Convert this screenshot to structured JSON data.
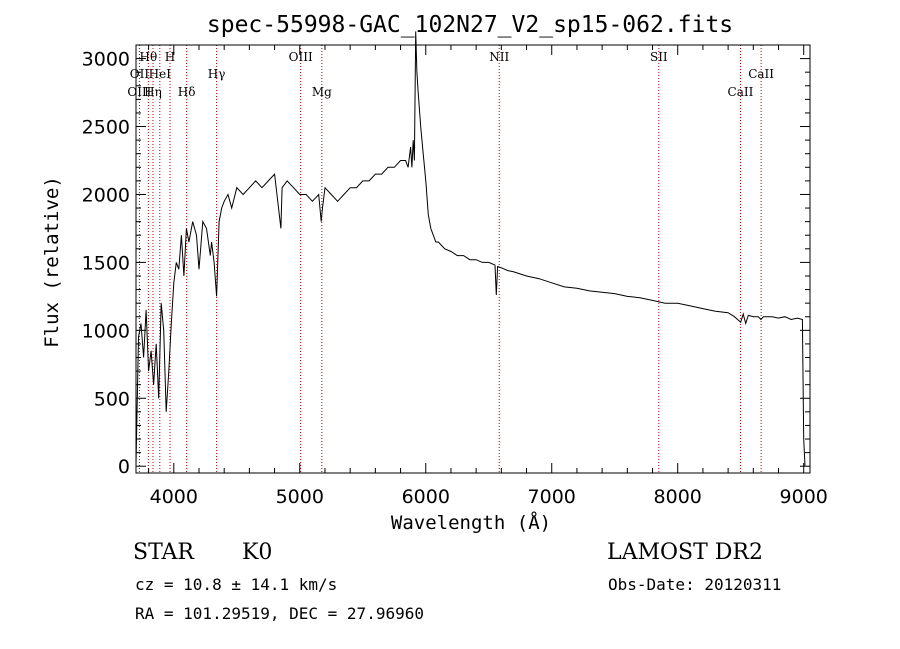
{
  "chart_data": {
    "type": "line",
    "title": "spec-55998-GAC_102N27_V2_sp15-062.fits",
    "xlabel": "Wavelength (Å)",
    "ylabel": "Flux (relative)",
    "xlim": [
      3700,
      9050
    ],
    "ylim": [
      -50,
      3100
    ],
    "x_ticks": [
      4000,
      5000,
      6000,
      7000,
      8000,
      9000
    ],
    "y_ticks": [
      0,
      500,
      1000,
      1500,
      2000,
      2500,
      3000
    ],
    "grid": false,
    "series": [
      {
        "x": [
          3700,
          3720,
          3740,
          3760,
          3780,
          3800,
          3820,
          3840,
          3860,
          3880,
          3900,
          3920,
          3940,
          3960,
          3980,
          4000,
          4020,
          4040,
          4060,
          4080,
          4100,
          4120,
          4150,
          4180,
          4200,
          4230,
          4260,
          4290,
          4300,
          4320,
          4340,
          4360,
          4380,
          4400,
          4430,
          4460,
          4500,
          4550,
          4600,
          4650,
          4700,
          4750,
          4800,
          4850,
          4860,
          4900,
          4950,
          5000,
          5050,
          5100,
          5150,
          5170,
          5180,
          5200,
          5250,
          5300,
          5350,
          5400,
          5450,
          5500,
          5550,
          5600,
          5650,
          5700,
          5750,
          5800,
          5840,
          5860,
          5880,
          5890,
          5900,
          5910,
          5920,
          5930,
          5940,
          5960,
          5980,
          6000,
          6020,
          6040,
          6060,
          6080,
          6100,
          6150,
          6200,
          6250,
          6300,
          6350,
          6400,
          6450,
          6500,
          6550,
          6560,
          6570,
          6600,
          6650,
          6700,
          6800,
          6900,
          7000,
          7100,
          7200,
          7300,
          7400,
          7500,
          7600,
          7700,
          7800,
          7900,
          8000,
          8100,
          8200,
          8300,
          8400,
          8450,
          8500,
          8520,
          8540,
          8560,
          8600,
          8640,
          8660,
          8680,
          8700,
          8750,
          8800,
          8850,
          8900,
          8950,
          8990,
          9000,
          9010
        ],
        "y": [
          10,
          950,
          1050,
          800,
          1150,
          700,
          850,
          600,
          900,
          500,
          1200,
          1000,
          400,
          700,
          1050,
          1350,
          1500,
          1450,
          1700,
          1400,
          1750,
          1650,
          1800,
          1700,
          1450,
          1800,
          1750,
          1550,
          1650,
          1500,
          1250,
          1800,
          1900,
          1950,
          2000,
          1900,
          2050,
          2000,
          2050,
          2100,
          2050,
          2100,
          2150,
          1750,
          2050,
          2100,
          2050,
          2000,
          2000,
          1950,
          2000,
          1800,
          1900,
          2050,
          2000,
          1950,
          2000,
          2050,
          2050,
          2100,
          2100,
          2150,
          2150,
          2200,
          2200,
          2250,
          2250,
          2200,
          2350,
          2200,
          2400,
          2250,
          3200,
          2900,
          2750,
          2500,
          2300,
          2100,
          1850,
          1750,
          1700,
          1650,
          1650,
          1600,
          1580,
          1550,
          1550,
          1520,
          1520,
          1500,
          1500,
          1480,
          1260,
          1470,
          1460,
          1440,
          1430,
          1400,
          1380,
          1350,
          1320,
          1310,
          1290,
          1280,
          1270,
          1250,
          1240,
          1220,
          1200,
          1200,
          1180,
          1160,
          1140,
          1130,
          1100,
          1060,
          1120,
          1050,
          1110,
          1100,
          1100,
          1080,
          1100,
          1100,
          1100,
          1090,
          1100,
          1080,
          1090,
          1080,
          200,
          0
        ]
      }
    ],
    "lines": [
      {
        "name": "Hθ",
        "wl": 3798,
        "row": "top"
      },
      {
        "name": "H",
        "wl": 3970,
        "row": "top"
      },
      {
        "name": "OIII",
        "wl": 5007,
        "row": "top"
      },
      {
        "name": "NII",
        "wl": 6583,
        "row": "top"
      },
      {
        "name": "SII",
        "wl": 7850,
        "row": "top"
      },
      {
        "name": "OII",
        "wl": 3727,
        "row": "mid"
      },
      {
        "name": "HeI",
        "wl": 3889,
        "row": "mid"
      },
      {
        "name": "Hγ",
        "wl": 4340,
        "row": "mid"
      },
      {
        "name": "CaII",
        "wl": 8662,
        "row": "mid"
      },
      {
        "name": "OIII",
        "wl": 3727,
        "row": "low"
      },
      {
        "name": "Hη",
        "wl": 3835,
        "row": "low"
      },
      {
        "name": "Hδ",
        "wl": 4102,
        "row": "low"
      },
      {
        "name": "Mg",
        "wl": 5175,
        "row": "low"
      },
      {
        "name": "CaII",
        "wl": 8498,
        "row": "low"
      }
    ],
    "line_marker_wl": [
      3727,
      3798,
      3835,
      3889,
      3970,
      4102,
      4340,
      5007,
      5175,
      6583,
      7850,
      8498,
      8662
    ],
    "colors": {
      "spectrum": "#000000",
      "markers": "#b00000"
    }
  },
  "info": {
    "class": "STAR",
    "subclass": "K0",
    "survey": "LAMOST DR2",
    "cz": "cz = 10.8 ± 14.1 km/s",
    "obsdate": "Obs-Date: 20120311",
    "radec": "RA = 101.29519, DEC =  27.96960"
  }
}
